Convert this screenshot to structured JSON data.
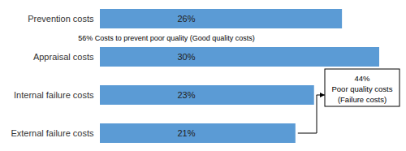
{
  "chart_data": {
    "type": "bar",
    "orientation": "horizontal",
    "categories": [
      "Prevention costs",
      "Appraisal costs",
      "Internal failure costs",
      "External failure costs"
    ],
    "values": [
      26,
      30,
      23,
      21
    ],
    "value_labels": [
      "26%",
      "30%",
      "23%",
      "21%"
    ],
    "data_labels": true,
    "color": "#5b9bd5",
    "xlim": [
      0,
      30
    ],
    "tick_labels": "y",
    "annotations": [
      {
        "text": "56% Costs to prevent poor quality (Good quality costs)"
      },
      {
        "lines": [
          "44%",
          "Poor quality costs",
          "(Failure costs)"
        ]
      }
    ]
  }
}
